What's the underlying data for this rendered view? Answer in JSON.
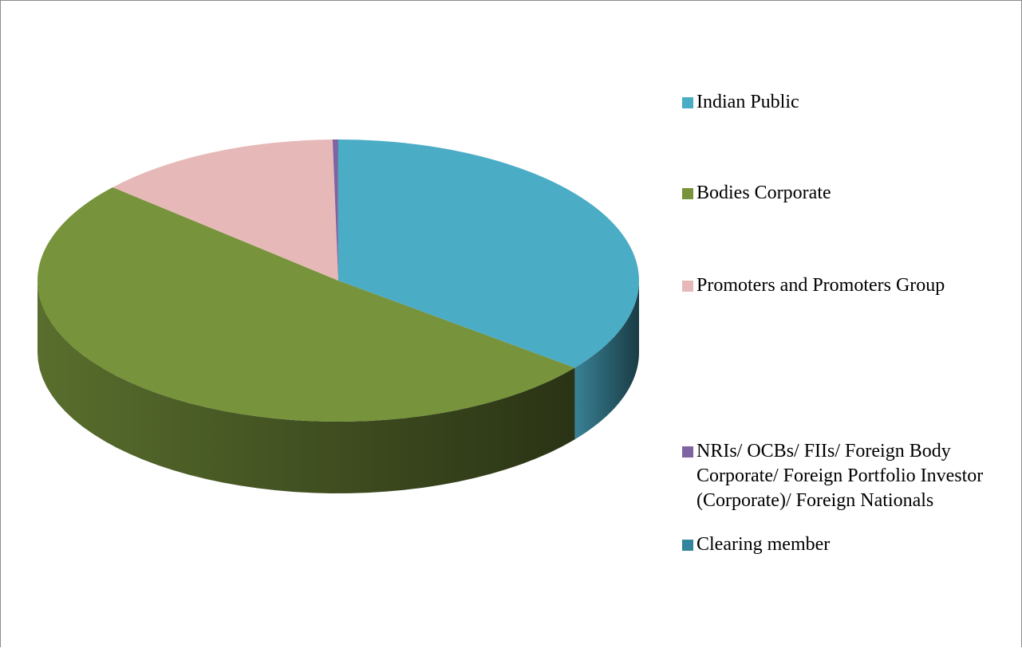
{
  "chart_data": {
    "type": "pie",
    "categories": [
      "Indian Public",
      "Bodies Corporate",
      "Promoters and Promoters Group",
      "NRIs/ OCBs/ FIIs/ Foreign Body Corporate/ Foreign Portfolio Investor (Corporate)/ Foreign Nationals",
      "Clearing member"
    ],
    "values": [
      35.6,
      50.9,
      13.2,
      0.28,
      0.02
    ],
    "colors": [
      "#4bacc6",
      "#77933c",
      "#e6b9b8",
      "#8064a2",
      "#31859c"
    ],
    "legend": "right"
  }
}
